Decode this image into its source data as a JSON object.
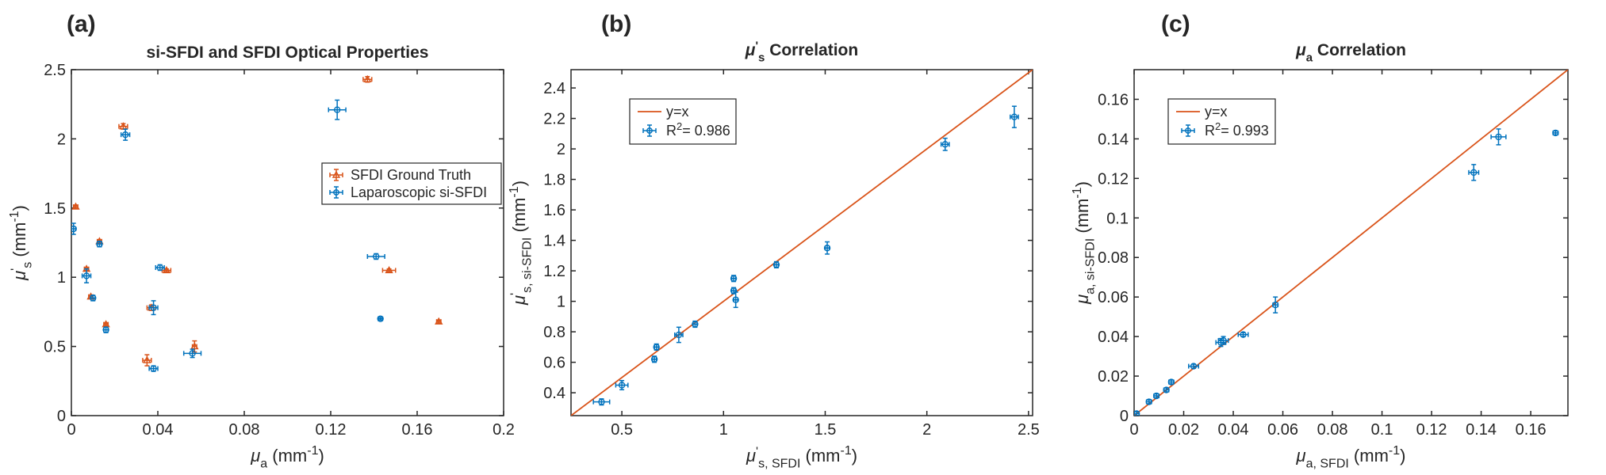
{
  "colors": {
    "orange": "#D95319",
    "blue": "#0072BD",
    "axis": "#262626"
  },
  "chart_data": [
    {
      "type": "scatter",
      "panel_label": "(a)",
      "title": "si-SFDI and SFDI Optical Properties",
      "xlabel": {
        "main": "μ",
        "sub": "a",
        "unit": " (mm",
        "exp": "-1",
        "close": ")"
      },
      "ylabel": {
        "main": "μ",
        "prime": "'",
        "sub": "s",
        "unit": " (mm",
        "exp": "-1",
        "close": ")"
      },
      "xlim": [
        0,
        0.2
      ],
      "ylim": [
        0,
        2.5
      ],
      "xticks": [
        0,
        0.04,
        0.08,
        0.12,
        0.16,
        0.2
      ],
      "xtick_labels": [
        "0",
        "0.04",
        "0.08",
        "0.12",
        "0.16",
        "0.2"
      ],
      "yticks": [
        0,
        0.5,
        1,
        1.5,
        2,
        2.5
      ],
      "ytick_labels": [
        "0",
        "0.5",
        "1",
        "1.5",
        "2",
        "2.5"
      ],
      "legend": [
        "SFDI Ground Truth",
        "Laparoscopic si-SFDI"
      ],
      "legend_position": "right-middle",
      "series": [
        {
          "name": "SFDI Ground Truth",
          "color": "#D95319",
          "marker": "triangle",
          "x": [
            0.002,
            0.007,
            0.009,
            0.013,
            0.016,
            0.024,
            0.035,
            0.037,
            0.044,
            0.057,
            0.137,
            0.147,
            0.17
          ],
          "y": [
            1.51,
            1.06,
            0.86,
            1.26,
            0.66,
            2.09,
            0.4,
            0.78,
            1.05,
            0.5,
            2.43,
            1.05,
            0.68
          ],
          "xerr": [
            0.001,
            0.001,
            0.001,
            0.001,
            0.001,
            0.002,
            0.002,
            0.002,
            0.002,
            0.001,
            0.002,
            0.003,
            0.001
          ],
          "yerr": [
            0.01,
            0.01,
            0.01,
            0.01,
            0.01,
            0.02,
            0.04,
            0.02,
            0.01,
            0.04,
            0.02,
            0.01,
            0.01
          ]
        },
        {
          "name": "Laparoscopic si-SFDI",
          "color": "#0072BD",
          "marker": "circle",
          "x": [
            0.001,
            0.007,
            0.01,
            0.013,
            0.016,
            0.025,
            0.038,
            0.038,
            0.041,
            0.056,
            0.123,
            0.141,
            0.143
          ],
          "y": [
            1.35,
            1.01,
            0.85,
            1.24,
            0.62,
            2.03,
            0.34,
            0.78,
            1.07,
            0.45,
            2.21,
            1.15,
            0.7
          ],
          "xerr": [
            0.001,
            0.002,
            0.001,
            0.001,
            0.001,
            0.002,
            0.002,
            0.002,
            0.002,
            0.004,
            0.004,
            0.004,
            0.001
          ],
          "yerr": [
            0.04,
            0.05,
            0.02,
            0.02,
            0.02,
            0.04,
            0.02,
            0.05,
            0.02,
            0.03,
            0.07,
            0.02,
            0.01
          ]
        }
      ]
    },
    {
      "type": "scatter",
      "panel_label": "(b)",
      "title": {
        "main": "μ",
        "prime": "'",
        "sub": "s",
        "rest": " Correlation"
      },
      "xlabel": {
        "main": "μ",
        "prime": "'",
        "sub": "s, SFDI",
        "unit": " (mm",
        "exp": "-1",
        "close": ")"
      },
      "ylabel": {
        "main": "μ",
        "prime": "'",
        "sub": "s, si-SFDI",
        "unit": " (mm",
        "exp": "-1",
        "close": ")"
      },
      "xlim": [
        0.25,
        2.52
      ],
      "ylim": [
        0.25,
        2.52
      ],
      "xticks": [
        0.5,
        1,
        1.5,
        2,
        2.5
      ],
      "xtick_labels": [
        "0.5",
        "1",
        "1.5",
        "2",
        "2.5"
      ],
      "yticks": [
        0.4,
        0.6,
        0.8,
        1,
        1.2,
        1.4,
        1.6,
        1.8,
        2,
        2.2,
        2.4
      ],
      "ytick_labels": [
        "0.4",
        "0.6",
        "0.8",
        "1",
        "1.2",
        "1.4",
        "1.6",
        "1.8",
        "2",
        "2.2",
        "2.4"
      ],
      "legend": [
        "y=x",
        "R",
        "2",
        "= 0.986"
      ],
      "legend_position": "top-left",
      "reference_line": {
        "name": "y=x",
        "color": "#D95319"
      },
      "series": [
        {
          "name": "R2 = 0.986",
          "color": "#0072BD",
          "marker": "circle",
          "x": [
            0.4,
            0.5,
            0.66,
            0.67,
            0.78,
            0.86,
            1.05,
            1.05,
            1.06,
            1.26,
            1.51,
            2.09,
            2.43
          ],
          "y": [
            0.34,
            0.45,
            0.62,
            0.7,
            0.78,
            0.85,
            1.15,
            1.07,
            1.01,
            1.24,
            1.35,
            2.03,
            2.21
          ],
          "xerr": [
            0.04,
            0.03,
            0.01,
            0.01,
            0.02,
            0.01,
            0.01,
            0.01,
            0.01,
            0.01,
            0.01,
            0.02,
            0.02
          ],
          "yerr": [
            0.02,
            0.03,
            0.02,
            0.02,
            0.05,
            0.02,
            0.02,
            0.02,
            0.05,
            0.02,
            0.04,
            0.04,
            0.07
          ]
        }
      ]
    },
    {
      "type": "scatter",
      "panel_label": "(c)",
      "title": {
        "main": "μ",
        "sub": "a",
        "rest": " Correlation"
      },
      "xlabel": {
        "main": "μ",
        "sub": "a, SFDI",
        "unit": " (mm",
        "exp": "-1",
        "close": ")"
      },
      "ylabel": {
        "main": "μ",
        "sub": "a, si-SFDI",
        "unit": " (mm",
        "exp": "-1",
        "close": ")"
      },
      "xlim": [
        0,
        0.175
      ],
      "ylim": [
        0,
        0.175
      ],
      "xticks": [
        0,
        0.02,
        0.04,
        0.06,
        0.08,
        0.1,
        0.12,
        0.14,
        0.16
      ],
      "xtick_labels": [
        "0",
        "0.02",
        "0.04",
        "0.06",
        "0.08",
        "0.1",
        "0.12",
        "0.14",
        "0.16"
      ],
      "yticks": [
        0,
        0.02,
        0.04,
        0.06,
        0.08,
        0.1,
        0.12,
        0.14,
        0.16
      ],
      "ytick_labels": [
        "0",
        "0.02",
        "0.04",
        "0.06",
        "0.08",
        "0.1",
        "0.12",
        "0.14",
        "0.16"
      ],
      "legend": [
        "y=x",
        "R",
        "2",
        "= 0.993"
      ],
      "legend_position": "top-left",
      "reference_line": {
        "name": "y=x",
        "color": "#D95319"
      },
      "series": [
        {
          "name": "R2 = 0.993",
          "color": "#0072BD",
          "marker": "circle",
          "x": [
            0.001,
            0.006,
            0.009,
            0.013,
            0.015,
            0.024,
            0.035,
            0.036,
            0.044,
            0.057,
            0.137,
            0.147,
            0.17
          ],
          "y": [
            0.001,
            0.007,
            0.01,
            0.013,
            0.017,
            0.025,
            0.037,
            0.038,
            0.041,
            0.056,
            0.123,
            0.141,
            0.143
          ],
          "xerr": [
            0.001,
            0.001,
            0.001,
            0.001,
            0.001,
            0.002,
            0.002,
            0.002,
            0.002,
            0.001,
            0.002,
            0.003,
            0.001
          ],
          "yerr": [
            0.001,
            0.001,
            0.001,
            0.001,
            0.001,
            0.001,
            0.002,
            0.002,
            0.001,
            0.004,
            0.004,
            0.004,
            0.001
          ]
        }
      ]
    }
  ]
}
